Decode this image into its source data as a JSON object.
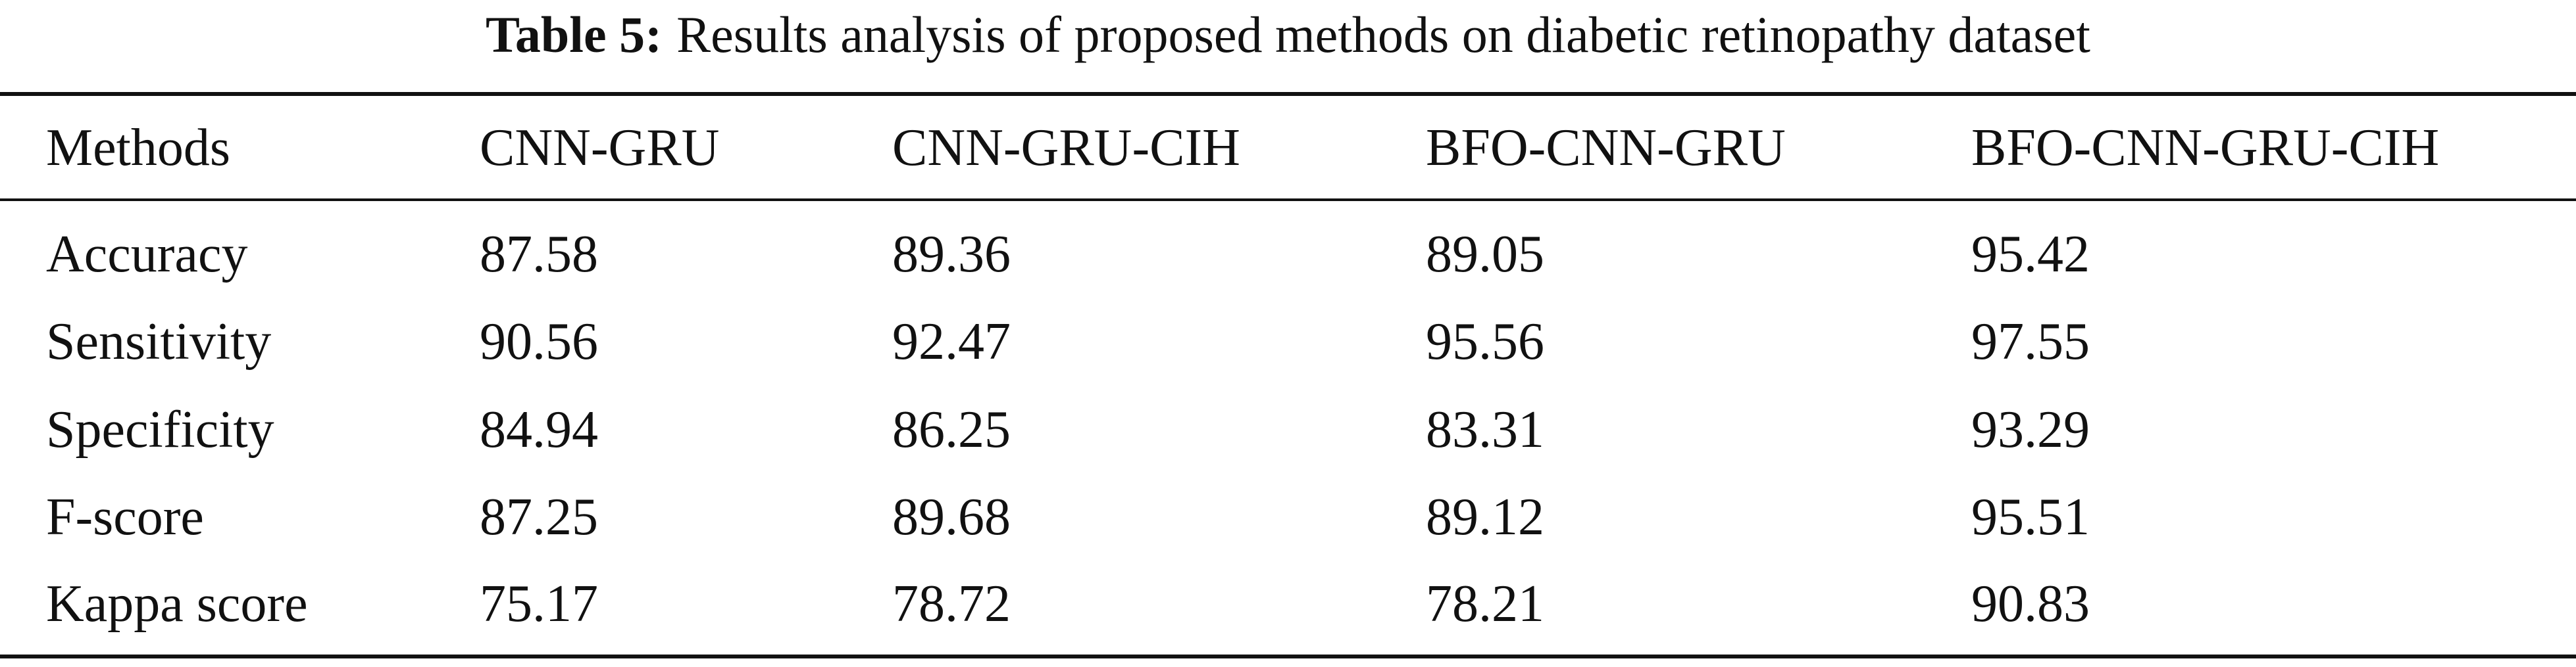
{
  "caption": {
    "label": "Table 5:",
    "text": "Results analysis of proposed methods on diabetic retinopathy dataset"
  },
  "table": {
    "header": [
      "Methods",
      "CNN-GRU",
      "CNN-GRU-CIH",
      "BFO-CNN-GRU",
      "BFO-CNN-GRU-CIH"
    ],
    "rows": [
      [
        "Accuracy",
        "87.58",
        "89.36",
        "89.05",
        "95.42"
      ],
      [
        "Sensitivity",
        "90.56",
        "92.47",
        "95.56",
        "97.55"
      ],
      [
        "Specificity",
        "84.94",
        "86.25",
        "83.31",
        "93.29"
      ],
      [
        "F-score",
        "87.25",
        "89.68",
        "89.12",
        "95.51"
      ],
      [
        "Kappa score",
        "75.17",
        "78.72",
        "78.21",
        "90.83"
      ]
    ]
  }
}
